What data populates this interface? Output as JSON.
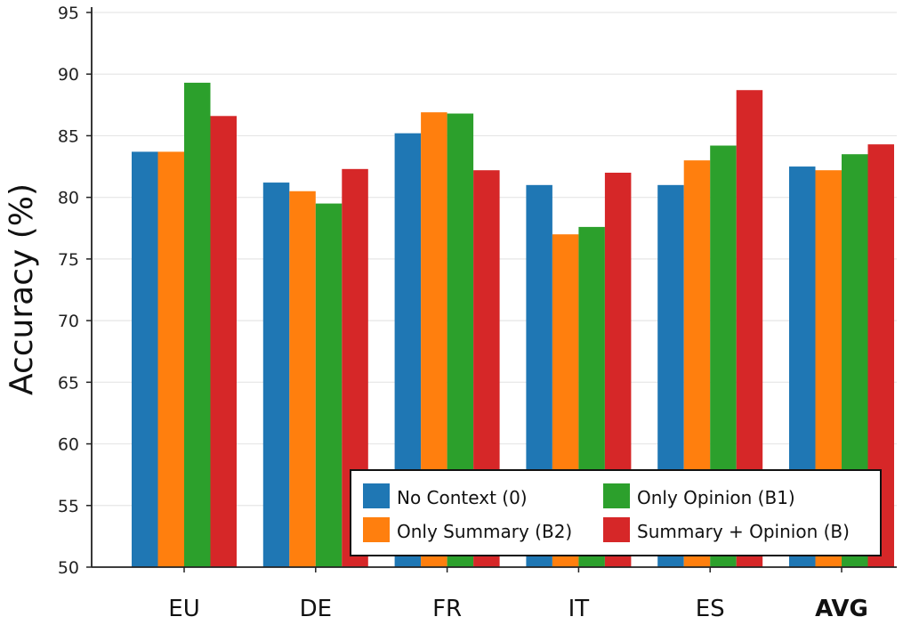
{
  "chart_data": {
    "type": "bar",
    "title": "",
    "xlabel": "",
    "ylabel": "Accuracy (%)",
    "ylim": [
      50,
      95
    ],
    "yticks": [
      50,
      55,
      60,
      65,
      70,
      75,
      80,
      85,
      90,
      95
    ],
    "grid": true,
    "categories": [
      "EU",
      "DE",
      "FR",
      "IT",
      "ES",
      "AVG"
    ],
    "bold_categories": [
      "AVG"
    ],
    "legend_position": "lower-right",
    "series": [
      {
        "name": "No Context (0)",
        "color": "#1f77b4",
        "values": [
          83.7,
          81.2,
          85.2,
          81.0,
          81.0,
          82.5
        ]
      },
      {
        "name": "Only Summary (B2)",
        "color": "#ff7f0e",
        "values": [
          83.7,
          80.5,
          86.9,
          77.0,
          83.0,
          82.2
        ]
      },
      {
        "name": "Only Opinion (B1)",
        "color": "#2ca02c",
        "values": [
          89.3,
          79.5,
          86.8,
          77.6,
          84.2,
          83.5
        ]
      },
      {
        "name": "Summary + Opinion (B)",
        "color": "#d62728",
        "values": [
          86.6,
          82.3,
          82.2,
          82.0,
          88.7,
          84.3
        ]
      }
    ]
  }
}
